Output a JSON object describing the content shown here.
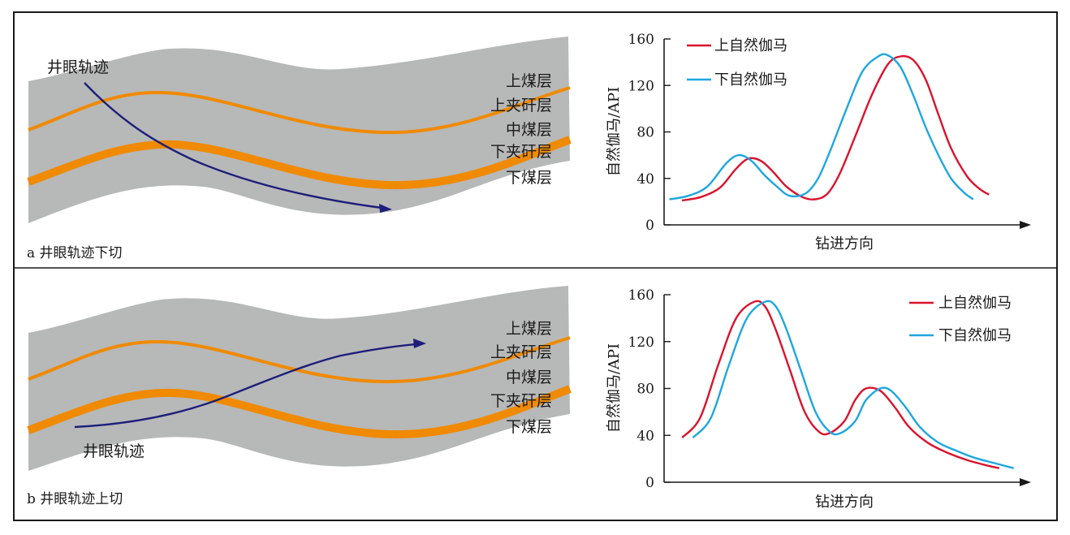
{
  "colors": {
    "upper_gamma": "#d9132d",
    "lower_gamma": "#1ea6e0",
    "trajectory": "#1c1f7a",
    "coal_seam": "#f08a00",
    "formation": "#b7b8b8",
    "frame": "#1a1a1a"
  },
  "panels": [
    {
      "caption": "a 井眼轨迹下切",
      "well_label": "井眼轨迹",
      "layer_labels": [
        "上煤层",
        "上夹矸层",
        "中煤层",
        "下夹矸层",
        "下煤层"
      ],
      "arrow_icon": "arrow-right-icon"
    },
    {
      "caption": "b 井眼轨迹上切",
      "well_label": "井眼轨迹",
      "layer_labels": [
        "上煤层",
        "上夹矸层",
        "中煤层",
        "下夹矸层",
        "下煤层"
      ],
      "arrow_icon": "arrow-right-icon"
    }
  ],
  "chart_data": [
    {
      "type": "line",
      "ylabel": "自然伽马/API",
      "xlabel": "钻进方向",
      "ylim": [
        0,
        160
      ],
      "yticks": [
        "0",
        "40",
        "80",
        "120",
        "160"
      ],
      "legend_position": "top-left",
      "series": [
        {
          "name": "上自然伽马",
          "x": [
            0,
            0.06,
            0.12,
            0.17,
            0.21,
            0.25,
            0.29,
            0.33,
            0.38,
            0.42,
            0.46,
            0.5,
            0.55,
            0.6,
            0.65,
            0.69,
            0.73,
            0.77,
            0.81,
            0.85,
            0.9,
            0.94,
            0.97
          ],
          "y": [
            21,
            24,
            32,
            48,
            57,
            55,
            45,
            33,
            24,
            22,
            27,
            45,
            78,
            112,
            138,
            145,
            142,
            125,
            95,
            66,
            42,
            31,
            26
          ]
        },
        {
          "name": "下自然伽马",
          "x": [
            -0.04,
            0.02,
            0.08,
            0.14,
            0.18,
            0.22,
            0.26,
            0.3,
            0.34,
            0.39,
            0.43,
            0.47,
            0.52,
            0.57,
            0.62,
            0.65,
            0.69,
            0.73,
            0.77,
            0.81,
            0.85,
            0.89,
            0.92
          ],
          "y": [
            22,
            25,
            33,
            53,
            60,
            55,
            43,
            33,
            25,
            27,
            40,
            65,
            100,
            132,
            145,
            146,
            136,
            112,
            84,
            60,
            40,
            28,
            22
          ]
        }
      ]
    },
    {
      "type": "line",
      "ylabel": "自然伽马/API",
      "xlabel": "钻进方向",
      "ylim": [
        0,
        160
      ],
      "yticks": [
        "0",
        "40",
        "80",
        "120",
        "160"
      ],
      "legend_position": "top-right",
      "series": [
        {
          "name": "上自然伽马",
          "x": [
            0.05,
            0.1,
            0.15,
            0.2,
            0.25,
            0.28,
            0.31,
            0.35,
            0.39,
            0.43,
            0.46,
            0.5,
            0.53,
            0.56,
            0.6,
            0.64,
            0.68,
            0.73,
            0.78,
            0.84,
            0.9,
            0.93
          ],
          "y": [
            38,
            55,
            100,
            140,
            154,
            150,
            130,
            95,
            60,
            43,
            42,
            52,
            70,
            80,
            78,
            64,
            47,
            34,
            26,
            19,
            14,
            12
          ]
        },
        {
          "name": "下自然伽马",
          "x": [
            0.08,
            0.13,
            0.18,
            0.23,
            0.28,
            0.31,
            0.34,
            0.38,
            0.42,
            0.46,
            0.49,
            0.53,
            0.56,
            0.6,
            0.63,
            0.67,
            0.71,
            0.76,
            0.81,
            0.86,
            0.92,
            0.97
          ],
          "y": [
            38,
            55,
            100,
            140,
            154,
            150,
            130,
            95,
            60,
            43,
            42,
            52,
            70,
            80,
            78,
            64,
            47,
            34,
            27,
            21,
            16,
            12
          ]
        }
      ]
    }
  ]
}
